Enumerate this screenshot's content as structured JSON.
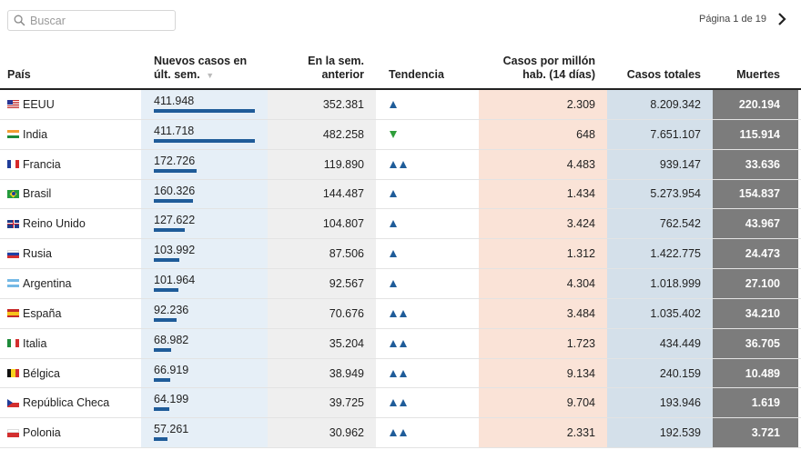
{
  "search": {
    "placeholder": "Buscar"
  },
  "pager": {
    "text": "Página 1 de 19"
  },
  "headers": {
    "country": "País",
    "new_cases": "Nuevos casos en últ. sem.",
    "prev_week": "En la sem. anterior",
    "trend": "Tendencia",
    "per_million": "Casos por millón hab. (14 días)",
    "total": "Casos totales",
    "deaths": "Muertes"
  },
  "sort_indicator": "▼",
  "colors": {
    "bar": "#1f5c99",
    "trend_up": "#1f5c99",
    "trend_down": "#2e9e3a",
    "new_col_bg": "#e6eff7",
    "prev_col_bg": "#efefef",
    "per_million_bg": "#fae3d7",
    "total_bg": "#d4e0ea",
    "deaths_bg": "#7c7c7c"
  },
  "rows": [
    {
      "country": "EEUU",
      "flag": "us-flag-icon",
      "new_cases": "411.948",
      "new_cases_value": 411948,
      "prev_week": "352.381",
      "trend": "up",
      "trend_count": 1,
      "per_million": "2.309",
      "total": "8.209.342",
      "deaths": "220.194"
    },
    {
      "country": "India",
      "flag": "india-flag-icon",
      "new_cases": "411.718",
      "new_cases_value": 411718,
      "prev_week": "482.258",
      "trend": "down",
      "trend_count": 1,
      "per_million": "648",
      "total": "7.651.107",
      "deaths": "115.914"
    },
    {
      "country": "Francia",
      "flag": "france-flag-icon",
      "new_cases": "172.726",
      "new_cases_value": 172726,
      "prev_week": "119.890",
      "trend": "up",
      "trend_count": 2,
      "per_million": "4.483",
      "total": "939.147",
      "deaths": "33.636"
    },
    {
      "country": "Brasil",
      "flag": "brazil-flag-icon",
      "new_cases": "160.326",
      "new_cases_value": 160326,
      "prev_week": "144.487",
      "trend": "up",
      "trend_count": 1,
      "per_million": "1.434",
      "total": "5.273.954",
      "deaths": "154.837"
    },
    {
      "country": "Reino Unido",
      "flag": "uk-flag-icon",
      "new_cases": "127.622",
      "new_cases_value": 127622,
      "prev_week": "104.807",
      "trend": "up",
      "trend_count": 1,
      "per_million": "3.424",
      "total": "762.542",
      "deaths": "43.967"
    },
    {
      "country": "Rusia",
      "flag": "russia-flag-icon",
      "new_cases": "103.992",
      "new_cases_value": 103992,
      "prev_week": "87.506",
      "trend": "up",
      "trend_count": 1,
      "per_million": "1.312",
      "total": "1.422.775",
      "deaths": "24.473"
    },
    {
      "country": "Argentina",
      "flag": "argentina-flag-icon",
      "new_cases": "101.964",
      "new_cases_value": 101964,
      "prev_week": "92.567",
      "trend": "up",
      "trend_count": 1,
      "per_million": "4.304",
      "total": "1.018.999",
      "deaths": "27.100"
    },
    {
      "country": "España",
      "flag": "spain-flag-icon",
      "new_cases": "92.236",
      "new_cases_value": 92236,
      "prev_week": "70.676",
      "trend": "up",
      "trend_count": 2,
      "per_million": "3.484",
      "total": "1.035.402",
      "deaths": "34.210"
    },
    {
      "country": "Italia",
      "flag": "italy-flag-icon",
      "new_cases": "68.982",
      "new_cases_value": 68982,
      "prev_week": "35.204",
      "trend": "up",
      "trend_count": 2,
      "per_million": "1.723",
      "total": "434.449",
      "deaths": "36.705"
    },
    {
      "country": "Bélgica",
      "flag": "belgium-flag-icon",
      "new_cases": "66.919",
      "new_cases_value": 66919,
      "prev_week": "38.949",
      "trend": "up",
      "trend_count": 2,
      "per_million": "9.134",
      "total": "240.159",
      "deaths": "10.489"
    },
    {
      "country": "República Checa",
      "flag": "czech-flag-icon",
      "new_cases": "64.199",
      "new_cases_value": 64199,
      "prev_week": "39.725",
      "trend": "up",
      "trend_count": 2,
      "per_million": "9.704",
      "total": "193.946",
      "deaths": "1.619"
    },
    {
      "country": "Polonia",
      "flag": "poland-flag-icon",
      "new_cases": "57.261",
      "new_cases_value": 57261,
      "prev_week": "30.962",
      "trend": "up",
      "trend_count": 2,
      "per_million": "2.331",
      "total": "192.539",
      "deaths": "3.721"
    }
  ]
}
